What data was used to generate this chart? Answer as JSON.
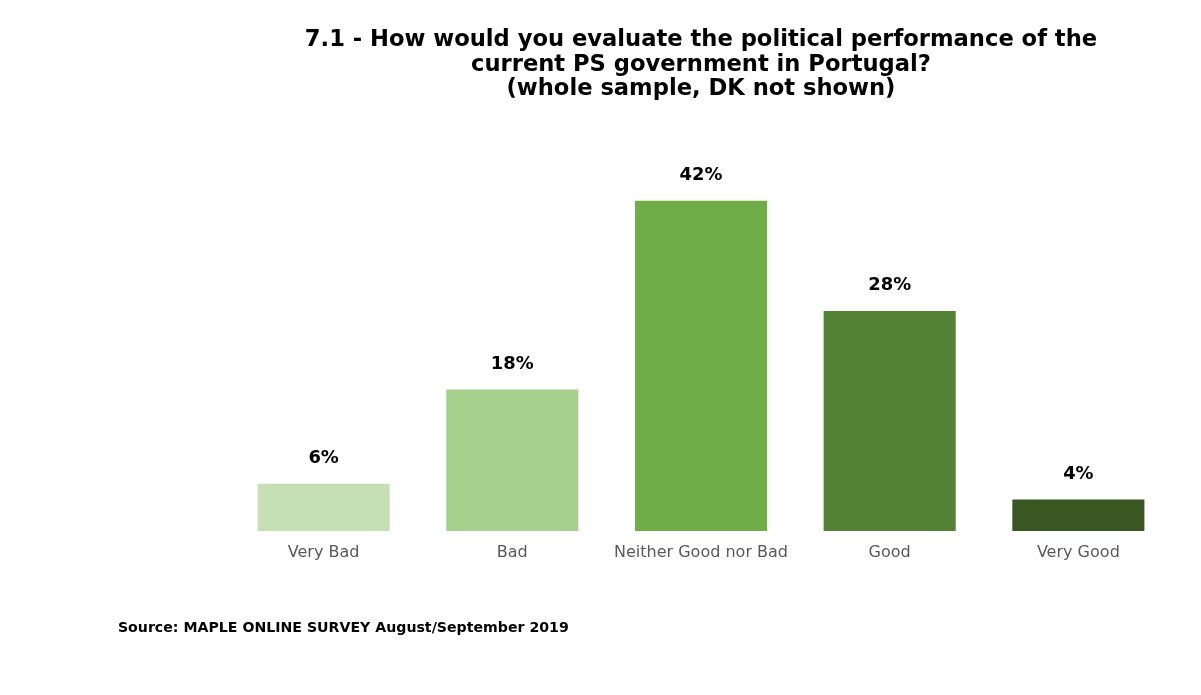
{
  "chart_data": {
    "type": "bar",
    "title": [
      "7.1 - How would you evaluate the political performance of the",
      "current PS government in Portugal?",
      "(whole sample, DK not shown)"
    ],
    "categories": [
      "Very Bad",
      "Bad",
      "Neither Good nor Bad",
      "Good",
      "Very Good"
    ],
    "values": [
      6,
      18,
      42,
      28,
      4
    ],
    "colors": [
      "#c5e0b3",
      "#a8d08d",
      "#70ad47",
      "#548235",
      "#385723"
    ],
    "data_labels": true,
    "value_labels": [
      "6%",
      "18%",
      "42%",
      "28%",
      "4%"
    ],
    "grid": false,
    "annotations": [
      "Source: MAPLE ONLINE SURVEY August/September 2019"
    ]
  }
}
